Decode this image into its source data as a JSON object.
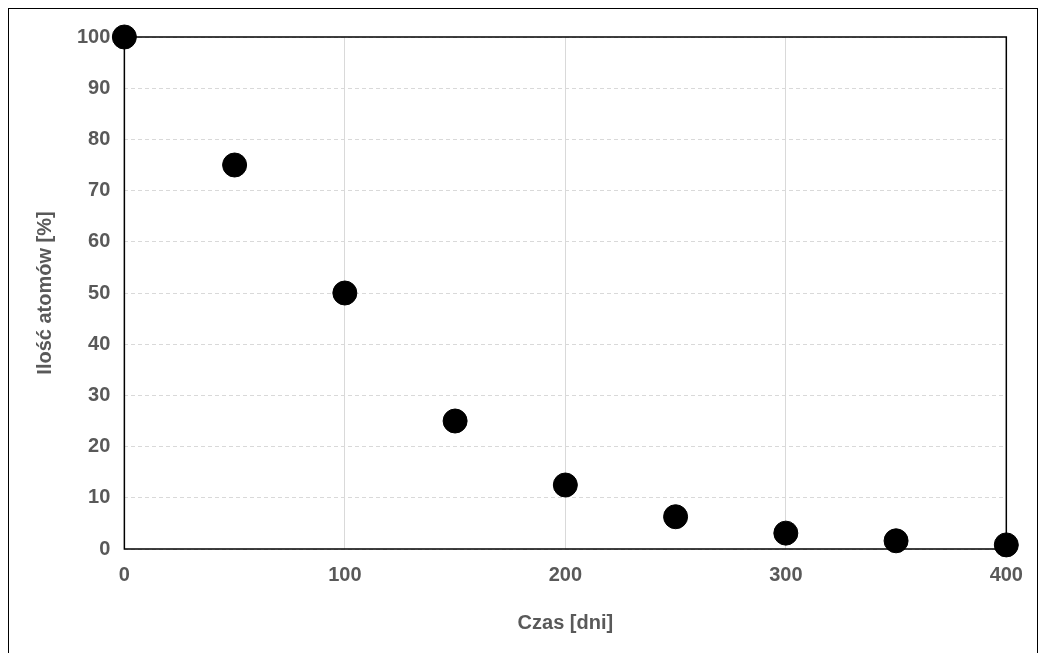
{
  "chart_data": {
    "type": "scatter",
    "xlabel": "Czas [dni]",
    "ylabel": "Ilość atomów [%]",
    "x": [
      0,
      50,
      100,
      150,
      200,
      250,
      300,
      350,
      400
    ],
    "series": [
      {
        "color": "#000000",
        "values": [
          100,
          75,
          50,
          25,
          12.5,
          6.3,
          3.1,
          1.6,
          0.8
        ]
      }
    ],
    "xlim": [
      0,
      400
    ],
    "xticks": [
      0,
      100,
      200,
      300,
      400
    ],
    "ylim": [
      0,
      100
    ],
    "yticks": [
      0,
      10,
      20,
      30,
      40,
      50,
      60,
      70,
      80,
      90,
      100
    ],
    "grid": true,
    "legend": false,
    "marker": "circle"
  }
}
